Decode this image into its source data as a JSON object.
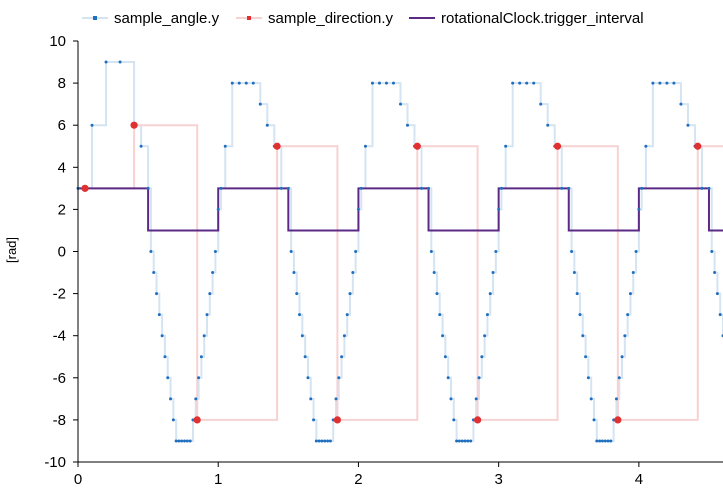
{
  "chart_data": {
    "type": "line",
    "title": "",
    "xlabel": "",
    "ylabel": "[rad]",
    "xlim": [
      0,
      4.6
    ],
    "ylim": [
      -10,
      10
    ],
    "x_ticks": [
      0,
      1,
      2,
      3,
      4
    ],
    "y_ticks": [
      10,
      8,
      6,
      4,
      2,
      0,
      -2,
      -4,
      -6,
      -8,
      -10
    ],
    "grid": false,
    "legend_position": "top",
    "series": [
      {
        "name": "sample_angle.y",
        "style": "step-points",
        "color": "#1f6fbf",
        "line_color": "#d5e4f2",
        "x": [
          0,
          0.1,
          0.2,
          0.3,
          0.4,
          0.45,
          0.5,
          0.52,
          0.54,
          0.56,
          0.58,
          0.6,
          0.62,
          0.64,
          0.66,
          0.68,
          0.7,
          0.72,
          0.74,
          0.76,
          0.78,
          0.8,
          0.82,
          0.84,
          0.86,
          0.88,
          0.9,
          0.92,
          0.94,
          0.96,
          0.98,
          1.0,
          1.02,
          1.05,
          1.1,
          1.15,
          1.2,
          1.25,
          1.3,
          1.35,
          1.4,
          1.45,
          1.5,
          1.52,
          1.54,
          1.56,
          1.58,
          1.6,
          1.62,
          1.64,
          1.66,
          1.68,
          1.7,
          1.72,
          1.74,
          1.76,
          1.78,
          1.8,
          1.82,
          1.84,
          1.86,
          1.88,
          1.9,
          1.92,
          1.94,
          1.96,
          1.98,
          2.0,
          2.02,
          2.05,
          2.1,
          2.15,
          2.2,
          2.25,
          2.3,
          2.35,
          2.4,
          2.45,
          2.5,
          2.52,
          2.54,
          2.56,
          2.58,
          2.6,
          2.62,
          2.64,
          2.66,
          2.68,
          2.7,
          2.72,
          2.74,
          2.76,
          2.78,
          2.8,
          2.82,
          2.84,
          2.86,
          2.88,
          2.9,
          2.92,
          2.94,
          2.96,
          2.98,
          3.0,
          3.02,
          3.05,
          3.1,
          3.15,
          3.2,
          3.25,
          3.3,
          3.35,
          3.4,
          3.45,
          3.5,
          3.52,
          3.54,
          3.56,
          3.58,
          3.6,
          3.62,
          3.64,
          3.66,
          3.68,
          3.7,
          3.72,
          3.74,
          3.76,
          3.78,
          3.8,
          3.82,
          3.84,
          3.86,
          3.88,
          3.9,
          3.92,
          3.94,
          3.96,
          3.98,
          4.0,
          4.02,
          4.05,
          4.1,
          4.15,
          4.2,
          4.25,
          4.3,
          4.35,
          4.4,
          4.45,
          4.5,
          4.52,
          4.54,
          4.56,
          4.58,
          4.6
        ],
        "y": [
          3,
          6,
          9,
          9,
          6,
          5,
          3,
          0,
          -1,
          -2,
          -3,
          -4,
          -5,
          -6,
          -7,
          -8,
          -9,
          -9,
          -9,
          -9,
          -9,
          -9,
          -8,
          -7,
          -6,
          -5,
          -4,
          -3,
          -2,
          -1,
          0,
          2,
          3,
          5,
          8,
          8,
          8,
          8,
          7,
          6,
          5,
          3,
          3,
          0,
          -1,
          -2,
          -3,
          -4,
          -5,
          -6,
          -7,
          -8,
          -9,
          -9,
          -9,
          -9,
          -9,
          -9,
          -8,
          -7,
          -6,
          -5,
          -4,
          -3,
          -2,
          -1,
          0,
          2,
          3,
          5,
          8,
          8,
          8,
          8,
          7,
          6,
          5,
          3,
          3,
          0,
          -1,
          -2,
          -3,
          -4,
          -5,
          -6,
          -7,
          -8,
          -9,
          -9,
          -9,
          -9,
          -9,
          -9,
          -8,
          -7,
          -6,
          -5,
          -4,
          -3,
          -2,
          -1,
          0,
          2,
          3,
          5,
          8,
          8,
          8,
          8,
          7,
          6,
          5,
          3,
          3,
          0,
          -1,
          -2,
          -3,
          -4,
          -5,
          -6,
          -7,
          -8,
          -9,
          -9,
          -9,
          -9,
          -9,
          -9,
          -8,
          -7,
          -6,
          -5,
          -4,
          -3,
          -2,
          -1,
          0,
          2,
          3,
          5,
          8,
          8,
          8,
          8,
          7,
          6,
          5,
          3,
          3,
          0,
          -1,
          -2,
          -3,
          -4
        ]
      },
      {
        "name": "sample_direction.y",
        "style": "step-points",
        "color": "#e03030",
        "line_color": "#f6d2d2",
        "x": [
          0.05,
          0.4,
          0.85,
          1.42,
          1.85,
          2.42,
          2.85,
          3.42,
          3.85,
          4.42
        ],
        "y": [
          3,
          6,
          -8,
          5,
          -8,
          5,
          -8,
          5,
          -8,
          5
        ]
      },
      {
        "name": "rotationalClock.trigger_interval",
        "style": "step-line",
        "color": "#5b2a86",
        "x": [
          0,
          0.5,
          0.5,
          1.0,
          1.0,
          1.5,
          1.5,
          2.0,
          2.0,
          2.5,
          2.5,
          3.0,
          3.0,
          3.5,
          3.5,
          4.0,
          4.0,
          4.5,
          4.5,
          4.6
        ],
        "y": [
          3,
          3,
          1,
          1,
          3,
          3,
          1,
          1,
          3,
          3,
          1,
          1,
          3,
          3,
          1,
          1,
          3,
          3,
          1,
          1
        ]
      }
    ]
  }
}
